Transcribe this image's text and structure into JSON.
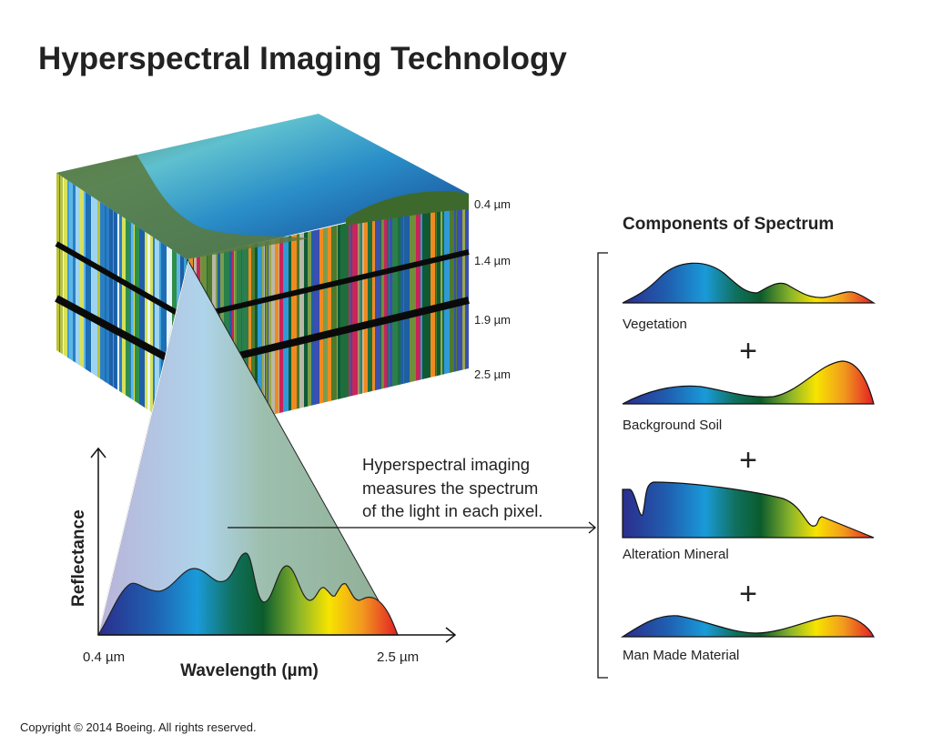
{
  "title": "Hyperspectral Imaging Technology",
  "cube": {
    "band_labels": [
      "0.4 µm",
      "1.4 µm",
      "1.9 µm",
      "2.5 µm"
    ]
  },
  "chart": {
    "y_label": "Reflectance",
    "x_label": "Wavelength (µm)",
    "x_start": "0.4 µm",
    "x_end": "2.5 µm"
  },
  "caption": {
    "lines": [
      "Hyperspectral imaging",
      "measures the spectrum",
      "of the light in each pixel."
    ]
  },
  "components": {
    "title": "Components of Spectrum",
    "items": [
      {
        "label": "Vegetation"
      },
      {
        "label": "Background Soil"
      },
      {
        "label": "Alteration Mineral"
      },
      {
        "label": "Man Made Material"
      }
    ],
    "operator": "+"
  },
  "copyright": "Copyright © 2014 Boeing. All rights reserved.",
  "colors": {
    "spectrum": [
      "#2b2d8c",
      "#1f5fb0",
      "#1a9ad8",
      "#10705e",
      "#0b5c2c",
      "#8cb52a",
      "#f7e400",
      "#f29a1e",
      "#e31e25"
    ],
    "cone": "#8fae95"
  }
}
